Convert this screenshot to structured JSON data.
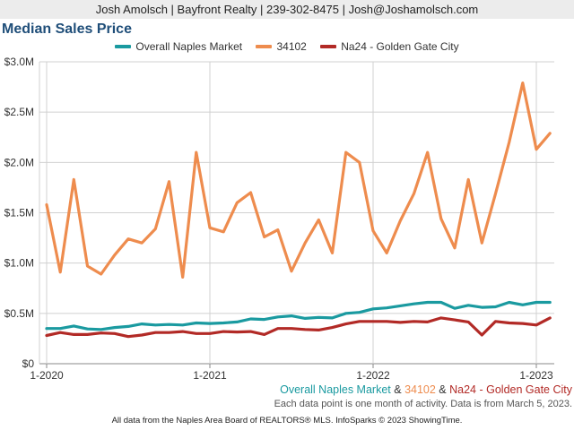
{
  "header": {
    "text": "Josh Amolsch | Bayfront Realty | 239-302-8475 | Josh@Joshamolsch.com"
  },
  "bottom_legend": {
    "series_a": "Overall Naples Market",
    "sep_a": " & ",
    "series_b": "34102",
    "sep_b": " & ",
    "series_c": "Na24 - Golden Gate City"
  },
  "note": "Each data point is one month of activity. Data is from March 5, 2023.",
  "footer": "All data from the Naples Area Board of REALTORS® MLS. InfoSparks © 2023 ShowingTime.",
  "colors": {
    "overall": "#1a9aa0",
    "zip": "#ee8c4e",
    "na24": "#b22a26",
    "grid": "#d0d0d0",
    "axis": "#888888",
    "title": "#1f4e79"
  },
  "chart_data": {
    "type": "line",
    "title": "Median Sales Price",
    "xlabel": "",
    "ylabel": "",
    "ylim": [
      0,
      3000000
    ],
    "grid": true,
    "legend_position": "top-center",
    "y_ticks": [
      0,
      500000,
      1000000,
      1500000,
      2000000,
      2500000,
      3000000
    ],
    "y_tick_labels": [
      "$0",
      "$0.5M",
      "$1.0M",
      "$1.5M",
      "$2.0M",
      "$2.5M",
      "$3.0M"
    ],
    "x_tick_labels": [
      "1-2020",
      "1-2021",
      "1-2022",
      "1-2023"
    ],
    "x_tick_month_index": [
      0,
      12,
      24,
      36
    ],
    "x_months": [
      "2020-01",
      "2020-02",
      "2020-03",
      "2020-04",
      "2020-05",
      "2020-06",
      "2020-07",
      "2020-08",
      "2020-09",
      "2020-10",
      "2020-11",
      "2020-12",
      "2021-01",
      "2021-02",
      "2021-03",
      "2021-04",
      "2021-05",
      "2021-06",
      "2021-07",
      "2021-08",
      "2021-09",
      "2021-10",
      "2021-11",
      "2021-12",
      "2022-01",
      "2022-02",
      "2022-03",
      "2022-04",
      "2022-05",
      "2022-06",
      "2022-07",
      "2022-08",
      "2022-09",
      "2022-10",
      "2022-11",
      "2022-12",
      "2023-01",
      "2023-02"
    ],
    "series": [
      {
        "name": "Overall Naples Market",
        "color": "#1a9aa0",
        "values": [
          350000,
          350000,
          375000,
          345000,
          340000,
          360000,
          370000,
          395000,
          385000,
          390000,
          385000,
          405000,
          400000,
          405000,
          415000,
          445000,
          440000,
          465000,
          475000,
          450000,
          460000,
          455000,
          500000,
          510000,
          545000,
          555000,
          575000,
          595000,
          610000,
          610000,
          550000,
          580000,
          560000,
          565000,
          610000,
          585000,
          610000,
          610000
        ]
      },
      {
        "name": "34102",
        "color": "#ee8c4e",
        "values": [
          1580000,
          910000,
          1830000,
          970000,
          890000,
          1080000,
          1240000,
          1200000,
          1340000,
          1810000,
          860000,
          2100000,
          1350000,
          1310000,
          1600000,
          1700000,
          1260000,
          1330000,
          920000,
          1200000,
          1430000,
          1100000,
          2100000,
          2000000,
          1320000,
          1100000,
          1420000,
          1690000,
          2100000,
          1440000,
          1150000,
          1830000,
          1200000,
          1690000,
          2200000,
          2790000,
          2130000,
          2290000
        ]
      },
      {
        "name": "Na24 - Golden Gate City",
        "color": "#b22a26",
        "values": [
          280000,
          310000,
          290000,
          290000,
          305000,
          300000,
          270000,
          285000,
          310000,
          310000,
          320000,
          300000,
          300000,
          320000,
          315000,
          320000,
          290000,
          350000,
          350000,
          340000,
          335000,
          360000,
          395000,
          420000,
          420000,
          420000,
          410000,
          420000,
          415000,
          455000,
          435000,
          415000,
          285000,
          420000,
          405000,
          400000,
          385000,
          455000
        ]
      }
    ]
  }
}
